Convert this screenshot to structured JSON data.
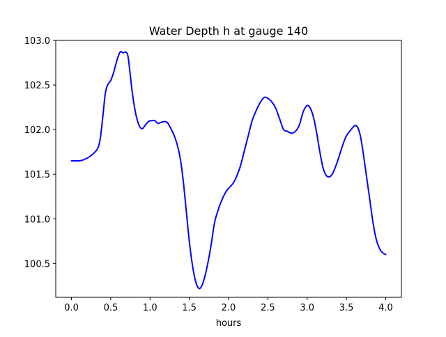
{
  "chart_data": {
    "type": "line",
    "title": "Water Depth h at gauge 140",
    "xlabel": "hours",
    "ylabel": "",
    "xlim": [
      -0.2,
      4.2
    ],
    "ylim": [
      100.12,
      103.0
    ],
    "xticks": [
      0.0,
      0.5,
      1.0,
      1.5,
      2.0,
      2.5,
      3.0,
      3.5,
      4.0
    ],
    "xtick_labels": [
      "0.0",
      "0.5",
      "1.0",
      "1.5",
      "2.0",
      "2.5",
      "3.0",
      "3.5",
      "4.0"
    ],
    "yticks": [
      100.5,
      101.0,
      101.5,
      102.0,
      102.5,
      103.0
    ],
    "ytick_labels": [
      "100.5",
      "101.0",
      "101.5",
      "102.0",
      "102.5",
      "103.0"
    ],
    "grid": false,
    "series": [
      {
        "color": "#0000ff",
        "x": [
          0.0,
          0.1,
          0.15,
          0.22,
          0.29,
          0.34,
          0.37,
          0.4,
          0.43,
          0.46,
          0.5,
          0.54,
          0.58,
          0.62,
          0.66,
          0.69,
          0.72,
          0.75,
          0.78,
          0.82,
          0.86,
          0.9,
          0.94,
          0.98,
          1.02,
          1.06,
          1.1,
          1.14,
          1.18,
          1.22,
          1.26,
          1.3,
          1.34,
          1.38,
          1.42,
          1.46,
          1.5,
          1.54,
          1.58,
          1.62,
          1.66,
          1.7,
          1.74,
          1.78,
          1.82,
          1.86,
          1.9,
          1.94,
          1.98,
          2.02,
          2.06,
          2.1,
          2.15,
          2.2,
          2.25,
          2.3,
          2.35,
          2.4,
          2.45,
          2.5,
          2.55,
          2.6,
          2.65,
          2.7,
          2.75,
          2.8,
          2.85,
          2.9,
          2.95,
          3.0,
          3.04,
          3.08,
          3.12,
          3.16,
          3.2,
          3.24,
          3.28,
          3.32,
          3.36,
          3.4,
          3.45,
          3.5,
          3.55,
          3.6,
          3.64,
          3.68,
          3.72,
          3.76,
          3.8,
          3.84,
          3.88,
          3.92,
          3.96,
          4.0
        ],
        "y": [
          101.65,
          101.65,
          101.66,
          101.69,
          101.74,
          101.8,
          101.92,
          102.15,
          102.4,
          102.5,
          102.55,
          102.65,
          102.78,
          102.87,
          102.86,
          102.87,
          102.82,
          102.6,
          102.38,
          102.17,
          102.05,
          102.01,
          102.05,
          102.09,
          102.1,
          102.1,
          102.07,
          102.08,
          102.09,
          102.08,
          102.02,
          101.95,
          101.85,
          101.7,
          101.45,
          101.1,
          100.75,
          100.48,
          100.3,
          100.22,
          100.25,
          100.36,
          100.52,
          100.72,
          100.95,
          101.08,
          101.18,
          101.26,
          101.32,
          101.36,
          101.4,
          101.47,
          101.59,
          101.76,
          101.93,
          102.1,
          102.21,
          102.3,
          102.36,
          102.35,
          102.31,
          102.24,
          102.12,
          102.0,
          101.98,
          101.96,
          101.98,
          102.05,
          102.2,
          102.27,
          102.24,
          102.14,
          101.97,
          101.76,
          101.58,
          101.49,
          101.47,
          101.5,
          101.58,
          101.68,
          101.82,
          101.93,
          101.99,
          102.04,
          102.03,
          101.92,
          101.7,
          101.45,
          101.2,
          100.95,
          100.77,
          100.67,
          100.62,
          100.6
        ]
      }
    ]
  }
}
